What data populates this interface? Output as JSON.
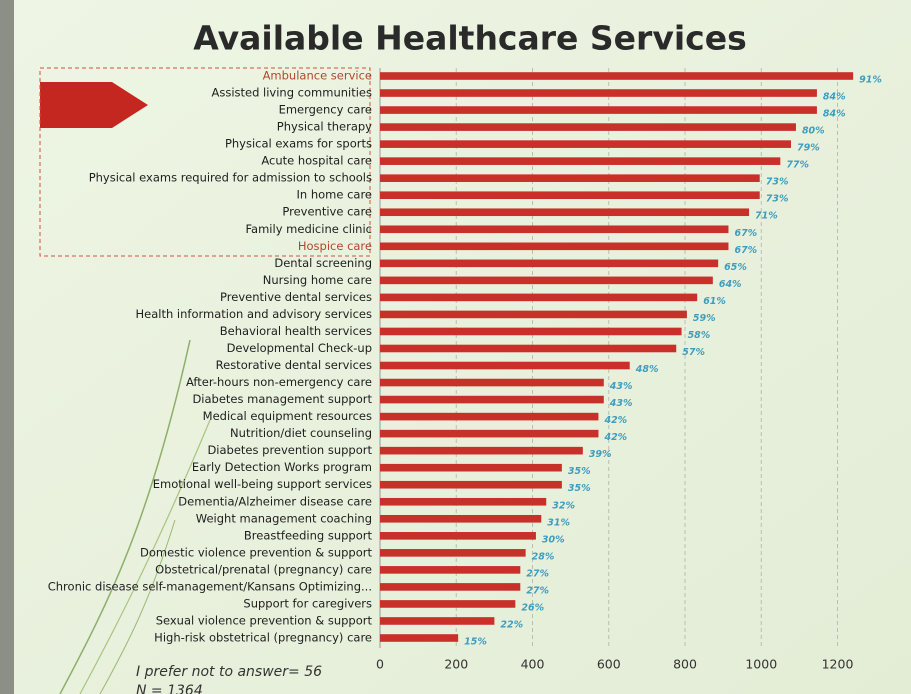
{
  "chart_data": {
    "type": "bar",
    "orientation": "horizontal",
    "title": "Available Healthcare Services",
    "categories": [
      "Ambulance service",
      "Assisted living communities",
      "Emergency care",
      "Physical therapy",
      "Physical exams for sports",
      "Acute hospital care",
      "Physical exams required for admission to schools",
      "In home care",
      "Preventive care",
      "Family medicine clinic",
      "Hospice care",
      "Dental screening",
      "Nursing home care",
      "Preventive dental services",
      "Health information and advisory services",
      "Behavioral health services",
      "Developmental Check-up",
      "Restorative dental services",
      "After-hours non-emergency care",
      "Diabetes management support",
      "Medical equipment resources",
      "Nutrition/diet counseling",
      "Diabetes prevention support",
      "Early Detection Works program",
      "Emotional well-being support services",
      "Dementia/Alzheimer disease care",
      "Weight management coaching",
      "Breastfeeding support",
      "Domestic violence prevention & support",
      "Obstetrical/prenatal (pregnancy) care",
      "Chronic disease self-management/Kansans Optimizing...",
      "Support for caregivers",
      "Sexual violence prevention & support",
      "High-risk obstetrical (pregnancy) care"
    ],
    "values": [
      1241,
      1146,
      1146,
      1091,
      1078,
      1050,
      996,
      996,
      968,
      914,
      914,
      887,
      873,
      832,
      805,
      791,
      777,
      655,
      587,
      587,
      573,
      573,
      532,
      477,
      477,
      436,
      423,
      409,
      382,
      368,
      368,
      355,
      300,
      205
    ],
    "value_labels": [
      "91%",
      "84%",
      "84%",
      "80%",
      "79%",
      "77%",
      "73%",
      "73%",
      "71%",
      "67%",
      "67%",
      "65%",
      "64%",
      "61%",
      "59%",
      "58%",
      "57%",
      "48%",
      "43%",
      "43%",
      "42%",
      "42%",
      "39%",
      "35%",
      "35%",
      "32%",
      "31%",
      "30%",
      "28%",
      "27%",
      "27%",
      "26%",
      "22%",
      "15%"
    ],
    "color": "#c8302a",
    "xlim": [
      0,
      1280
    ],
    "xticks": [
      0,
      200,
      400,
      600,
      800,
      1000,
      1200
    ],
    "grid": true,
    "annotations": [
      "I prefer not to answer= 56",
      "N = 1364"
    ]
  }
}
